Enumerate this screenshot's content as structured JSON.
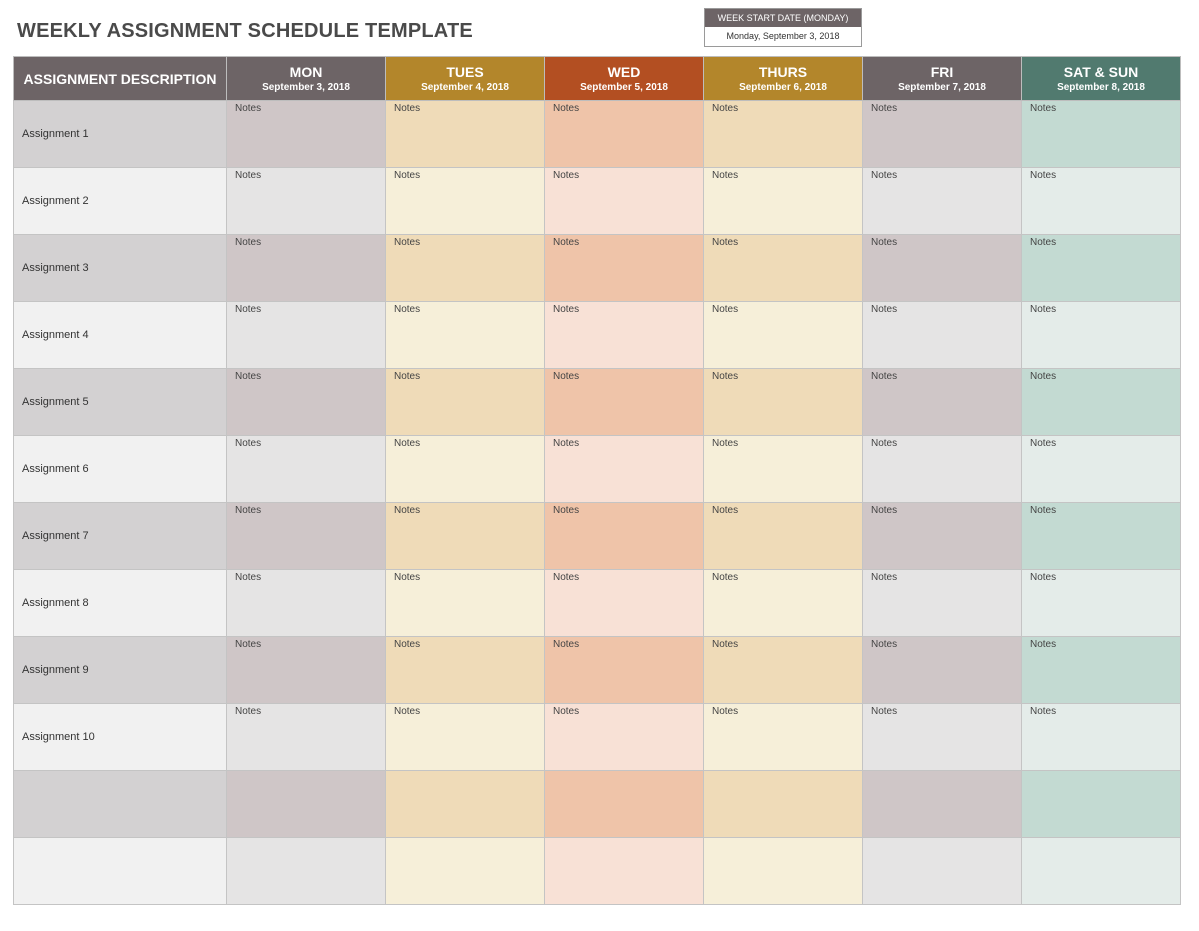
{
  "title": "WEEKLY ASSIGNMENT SCHEDULE TEMPLATE",
  "week_start": {
    "label": "WEEK START DATE (MONDAY)",
    "value": "Monday, September 3, 2018"
  },
  "table": {
    "desc_header": "ASSIGNMENT DESCRIPTION",
    "days": [
      {
        "name": "MON",
        "date": "September 3, 2018",
        "header_color": "#6d6466",
        "odd_color": "#cfc6c7",
        "even_color": "#e5e4e4"
      },
      {
        "name": "TUES",
        "date": "September 4, 2018",
        "header_color": "#b3862b",
        "odd_color": "#efdbb8",
        "even_color": "#f6efd9"
      },
      {
        "name": "WED",
        "date": "September 5, 2018",
        "header_color": "#b34f22",
        "odd_color": "#efc4a9",
        "even_color": "#f8e1d6"
      },
      {
        "name": "THURS",
        "date": "September 6, 2018",
        "header_color": "#b3862b",
        "odd_color": "#efdbb8",
        "even_color": "#f6efd9"
      },
      {
        "name": "FRI",
        "date": "September 7, 2018",
        "header_color": "#6d6466",
        "odd_color": "#cfc6c7",
        "even_color": "#e5e4e4"
      },
      {
        "name": "SAT & SUN",
        "date": "September 8, 2018",
        "header_color": "#517a6f",
        "odd_color": "#c3dad2",
        "even_color": "#e4ece9"
      }
    ],
    "rows": [
      {
        "assignment": "Assignment 1",
        "note": "Notes"
      },
      {
        "assignment": "Assignment 2",
        "note": "Notes"
      },
      {
        "assignment": "Assignment 3",
        "note": "Notes"
      },
      {
        "assignment": "Assignment 4",
        "note": "Notes"
      },
      {
        "assignment": "Assignment 5",
        "note": "Notes"
      },
      {
        "assignment": "Assignment 6",
        "note": "Notes"
      },
      {
        "assignment": "Assignment 7",
        "note": "Notes"
      },
      {
        "assignment": "Assignment 8",
        "note": "Notes"
      },
      {
        "assignment": "Assignment 9",
        "note": "Notes"
      },
      {
        "assignment": "Assignment 10",
        "note": "Notes"
      },
      {
        "assignment": "",
        "note": ""
      },
      {
        "assignment": "",
        "note": ""
      }
    ]
  }
}
